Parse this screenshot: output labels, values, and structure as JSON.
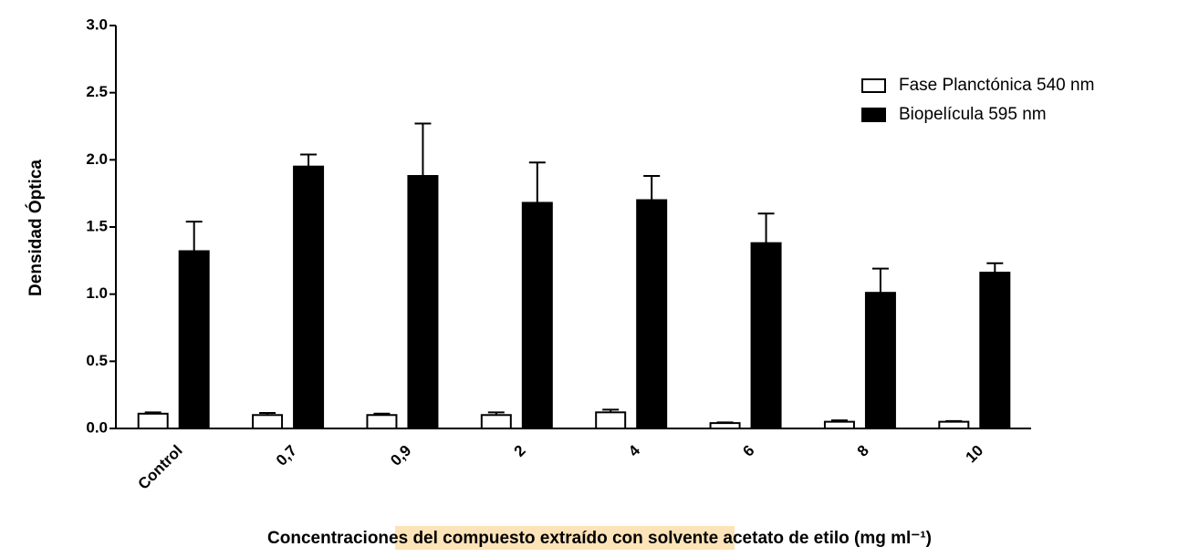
{
  "chart_data": {
    "type": "bar",
    "ylabel": "Densidad Óptica",
    "xlabel": "Concentraciones del compuesto extraído con solvente acetato de etilo (mg ml⁻¹)",
    "categories": [
      "Control",
      "0,7",
      "0,9",
      "2",
      "4",
      "6",
      "8",
      "10"
    ],
    "series": [
      {
        "name": "Fase Planctónica 540 nm",
        "color": "#ffffff",
        "values": [
          0.11,
          0.1,
          0.1,
          0.1,
          0.12,
          0.04,
          0.05,
          0.05
        ],
        "errors": [
          0.01,
          0.015,
          0.01,
          0.02,
          0.02,
          0.005,
          0.01,
          0.005
        ]
      },
      {
        "name": "Biopelícula 595 nm",
        "color": "#000000",
        "values": [
          1.32,
          1.95,
          1.88,
          1.68,
          1.7,
          1.38,
          1.01,
          1.16
        ],
        "errors": [
          0.22,
          0.09,
          0.39,
          0.3,
          0.18,
          0.22,
          0.18,
          0.07
        ]
      }
    ],
    "ylim": [
      0,
      3
    ],
    "yticks": [
      {
        "value": 0,
        "label": "0.0"
      },
      0.5,
      {
        "value": 1,
        "label": "1.0"
      },
      1.5,
      {
        "value": 2,
        "label": "2.0"
      },
      2.5,
      {
        "value": 3,
        "label": "3.0"
      }
    ],
    "legend": "upper right"
  }
}
